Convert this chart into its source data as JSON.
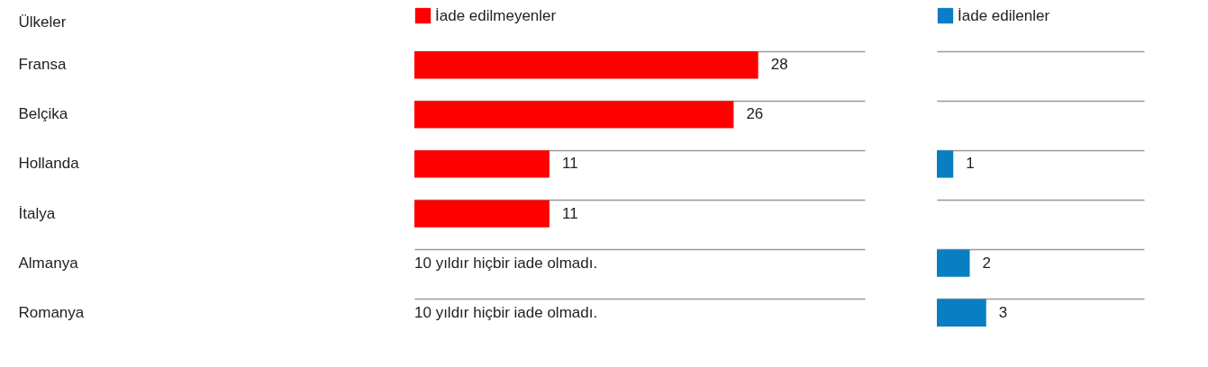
{
  "chart_data": [
    {
      "type": "bar",
      "orientation": "horizontal",
      "ylabel": "Ülkeler",
      "categories": [
        "Fransa",
        "Belçika",
        "Hollanda",
        "İtalya",
        "Almanya",
        "Romanya"
      ],
      "series": [
        {
          "name": "İade edilmeyenler",
          "color": "#ff0000",
          "values": [
            28,
            26,
            11,
            11,
            null,
            null
          ]
        }
      ],
      "annotations": [
        "10 yıldır hiçbir iade olmadı.",
        "10 yıldır hiçbir iade olmadı."
      ],
      "data_labels": true,
      "legend": "top",
      "grid": "y"
    },
    {
      "type": "bar",
      "orientation": "horizontal",
      "categories": [
        null,
        null,
        null,
        null,
        null,
        null
      ],
      "series": [
        {
          "name": "İade edilenler",
          "color": "#0a7ec2",
          "values": [
            null,
            null,
            1,
            null,
            2,
            3
          ]
        }
      ],
      "data_labels": true,
      "legend": "top",
      "grid": "y",
      "tick_labels": false
    }
  ]
}
